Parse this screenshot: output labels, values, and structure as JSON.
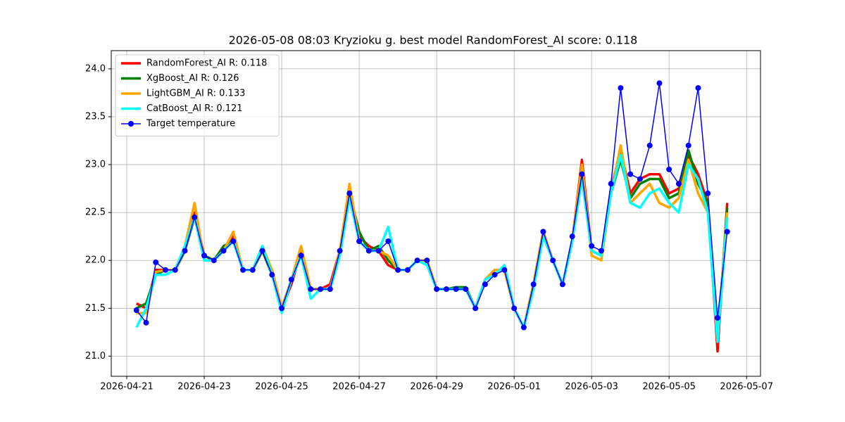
{
  "chart_data": {
    "type": "line",
    "title": "2026-05-08 08:03 Kryzioku g. best model RandomForest_AI score: 0.118",
    "x": [
      "2026-04-21 06:00",
      "2026-04-21 12:00",
      "2026-04-21 18:00",
      "2026-04-22 00:00",
      "2026-04-22 06:00",
      "2026-04-22 12:00",
      "2026-04-22 18:00",
      "2026-04-23 00:00",
      "2026-04-23 06:00",
      "2026-04-23 12:00",
      "2026-04-23 18:00",
      "2026-04-24 00:00",
      "2026-04-24 06:00",
      "2026-04-24 12:00",
      "2026-04-24 18:00",
      "2026-04-25 00:00",
      "2026-04-25 06:00",
      "2026-04-25 12:00",
      "2026-04-25 18:00",
      "2026-04-26 00:00",
      "2026-04-26 06:00",
      "2026-04-26 12:00",
      "2026-04-26 18:00",
      "2026-04-27 00:00",
      "2026-04-27 06:00",
      "2026-04-27 12:00",
      "2026-04-27 18:00",
      "2026-04-28 00:00",
      "2026-04-28 06:00",
      "2026-04-28 12:00",
      "2026-04-28 18:00",
      "2026-04-29 00:00",
      "2026-04-29 06:00",
      "2026-04-29 12:00",
      "2026-04-29 18:00",
      "2026-04-30 00:00",
      "2026-04-30 06:00",
      "2026-04-30 12:00",
      "2026-04-30 18:00",
      "2026-05-01 00:00",
      "2026-05-01 06:00",
      "2026-05-01 12:00",
      "2026-05-01 18:00",
      "2026-05-02 00:00",
      "2026-05-02 06:00",
      "2026-05-02 12:00",
      "2026-05-02 18:00",
      "2026-05-03 00:00",
      "2026-05-03 06:00",
      "2026-05-03 12:00",
      "2026-05-03 18:00",
      "2026-05-04 00:00",
      "2026-05-04 06:00",
      "2026-05-04 12:00",
      "2026-05-04 18:00",
      "2026-05-05 00:00",
      "2026-05-05 06:00",
      "2026-05-05 12:00",
      "2026-05-05 18:00",
      "2026-05-06 00:00",
      "2026-05-06 06:00",
      "2026-05-06 12:00"
    ],
    "series": [
      {
        "name": "RandomForest_AI R: 0.118",
        "color": "#ff0000",
        "values": [
          21.55,
          21.5,
          21.9,
          21.9,
          21.9,
          22.1,
          22.5,
          22.05,
          22.0,
          22.1,
          22.25,
          21.9,
          21.9,
          22.1,
          21.9,
          21.5,
          21.75,
          22.1,
          21.7,
          21.7,
          21.75,
          22.1,
          22.65,
          22.25,
          22.15,
          22.1,
          21.95,
          21.9,
          21.9,
          22.0,
          22.0,
          21.7,
          21.7,
          21.7,
          21.7,
          21.5,
          21.8,
          21.9,
          21.9,
          21.5,
          21.3,
          21.75,
          22.3,
          22.0,
          21.75,
          22.2,
          23.05,
          22.1,
          22.05,
          22.75,
          23.15,
          22.7,
          22.85,
          22.9,
          22.9,
          22.7,
          22.75,
          23.1,
          22.9,
          22.6,
          21.05,
          22.6
        ]
      },
      {
        "name": "XgBoost_AI R: 0.126",
        "color": "#008000",
        "values": [
          21.5,
          21.55,
          21.85,
          21.9,
          21.9,
          22.1,
          22.45,
          22.05,
          22.0,
          22.15,
          22.2,
          21.9,
          21.9,
          22.1,
          21.85,
          21.5,
          21.8,
          22.1,
          21.7,
          21.7,
          21.7,
          22.1,
          22.7,
          22.3,
          22.1,
          22.15,
          22.0,
          21.9,
          21.9,
          22.0,
          22.0,
          21.7,
          21.7,
          21.72,
          21.72,
          21.5,
          21.8,
          21.9,
          21.9,
          21.5,
          21.3,
          21.75,
          22.3,
          22.0,
          21.75,
          22.2,
          22.95,
          22.1,
          22.05,
          22.7,
          23.05,
          22.65,
          22.8,
          22.85,
          22.85,
          22.65,
          22.7,
          23.15,
          22.8,
          22.6,
          21.15,
          22.55
        ]
      },
      {
        "name": "LightGBM_AI R: 0.133",
        "color": "#ffa500",
        "values": [
          21.45,
          21.45,
          21.88,
          21.9,
          21.9,
          22.15,
          22.6,
          22.0,
          22.0,
          22.1,
          22.3,
          21.9,
          21.9,
          22.15,
          21.9,
          21.5,
          21.8,
          22.15,
          21.7,
          21.7,
          21.7,
          22.1,
          22.8,
          22.2,
          22.1,
          22.1,
          22.05,
          21.9,
          21.9,
          22.0,
          22.0,
          21.7,
          21.7,
          21.7,
          21.7,
          21.5,
          21.8,
          21.9,
          21.9,
          21.5,
          21.3,
          21.75,
          22.3,
          22.0,
          21.75,
          22.2,
          23.0,
          22.05,
          22.0,
          22.7,
          23.2,
          22.6,
          22.7,
          22.8,
          22.6,
          22.55,
          22.65,
          23.05,
          22.7,
          22.5,
          21.2,
          22.5
        ]
      },
      {
        "name": "CatBoost_AI R: 0.121",
        "color": "#00ffff",
        "values": [
          21.3,
          21.5,
          21.85,
          21.85,
          21.9,
          22.15,
          22.45,
          22.0,
          22.0,
          22.1,
          22.2,
          21.9,
          21.9,
          22.15,
          21.85,
          21.45,
          21.8,
          22.05,
          21.6,
          21.7,
          21.7,
          22.05,
          22.65,
          22.2,
          22.1,
          22.1,
          22.35,
          21.9,
          21.9,
          22.0,
          21.95,
          21.7,
          21.7,
          21.7,
          21.7,
          21.5,
          21.8,
          21.85,
          21.95,
          21.5,
          21.3,
          21.7,
          22.25,
          22.0,
          21.75,
          22.2,
          22.85,
          22.1,
          22.05,
          22.7,
          23.1,
          22.6,
          22.55,
          22.7,
          22.75,
          22.6,
          22.5,
          23.0,
          22.85,
          22.5,
          21.15,
          22.45
        ]
      },
      {
        "name": "Target temperature",
        "color": "#0000ff",
        "marker": "o",
        "values": [
          21.48,
          21.35,
          21.98,
          21.9,
          21.9,
          22.1,
          22.45,
          22.05,
          22.0,
          22.1,
          22.2,
          21.9,
          21.9,
          22.1,
          21.85,
          21.5,
          21.8,
          22.05,
          21.7,
          21.7,
          21.7,
          22.1,
          22.7,
          22.2,
          22.1,
          22.1,
          22.2,
          21.9,
          21.9,
          22.0,
          22.0,
          21.7,
          21.7,
          21.7,
          21.7,
          21.5,
          21.75,
          21.85,
          21.9,
          21.5,
          21.3,
          21.75,
          22.3,
          22.0,
          21.75,
          22.25,
          22.9,
          22.15,
          22.1,
          22.8,
          23.8,
          22.9,
          22.85,
          23.2,
          23.85,
          22.95,
          22.8,
          23.2,
          23.8,
          22.7,
          21.4,
          22.3
        ]
      }
    ],
    "xlim": [
      "2026-04-20 14:24",
      "2026-05-07 08:38"
    ],
    "xticks": [
      "2026-04-21",
      "2026-04-23",
      "2026-04-25",
      "2026-04-27",
      "2026-04-29",
      "2026-05-01",
      "2026-05-03",
      "2026-05-05",
      "2026-05-07"
    ],
    "ylim": [
      20.79,
      24.19
    ],
    "yticks": [
      {
        "value": 21,
        "label": "21.0"
      },
      21.5,
      {
        "value": 22,
        "label": "22.0"
      },
      22.5,
      {
        "value": 23,
        "label": "23.0"
      },
      23.5,
      {
        "value": 24,
        "label": "24.0"
      }
    ],
    "grid": true,
    "legend": "upper left"
  }
}
